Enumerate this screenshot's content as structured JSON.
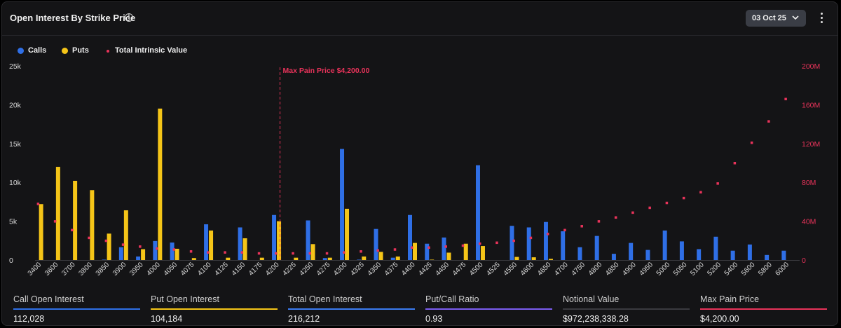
{
  "header": {
    "title": "Open Interest By Strike Price",
    "info_icon": "info-circle-icon",
    "date_selector": "03 Oct 25",
    "chevron_icon": "chevron-down-icon",
    "menu_icon": "more-vertical-icon"
  },
  "legend": [
    {
      "label": "Calls",
      "color": "#2f6fe6",
      "shape": "dot"
    },
    {
      "label": "Puts",
      "color": "#f5c518",
      "shape": "dot"
    },
    {
      "label": "Total Intrinsic Value",
      "color": "#e8335a",
      "shape": "small-dot"
    }
  ],
  "chart_data": {
    "type": "bar",
    "categories": [
      "3400",
      "3600",
      "3700",
      "3800",
      "3850",
      "3900",
      "3950",
      "4000",
      "4050",
      "4075",
      "4100",
      "4125",
      "4150",
      "4175",
      "4200",
      "4225",
      "4250",
      "4275",
      "4300",
      "4325",
      "4350",
      "4375",
      "4400",
      "4425",
      "4450",
      "4475",
      "4500",
      "4525",
      "4550",
      "4600",
      "4650",
      "4700",
      "4750",
      "4800",
      "4850",
      "4900",
      "4950",
      "5000",
      "5050",
      "5100",
      "5200",
      "5400",
      "5600",
      "5800",
      "6000"
    ],
    "series": [
      {
        "name": "Calls",
        "axis": "left",
        "values": [
          0,
          0,
          0,
          0,
          50,
          1650,
          450,
          2450,
          2250,
          0,
          4600,
          0,
          4200,
          0,
          5800,
          0,
          5100,
          250,
          14300,
          50,
          4000,
          300,
          5800,
          2100,
          2900,
          0,
          12200,
          0,
          4400,
          4200,
          4900,
          3700,
          1650,
          3100,
          800,
          2200,
          1300,
          3800,
          2400,
          1400,
          3000,
          1200,
          2000,
          650,
          1200
        ]
      },
      {
        "name": "Puts",
        "axis": "left",
        "values": [
          7200,
          12000,
          10200,
          9000,
          3400,
          6400,
          1400,
          19500,
          1450,
          250,
          3800,
          300,
          2800,
          300,
          5000,
          300,
          2050,
          300,
          6600,
          450,
          1050,
          450,
          2200,
          50,
          950,
          2100,
          1800,
          0,
          400,
          350,
          150,
          0,
          0,
          0,
          0,
          0,
          0,
          0,
          0,
          0,
          0,
          0,
          0,
          0,
          0
        ]
      },
      {
        "name": "Total Intrinsic Value",
        "axis": "right",
        "type": "scatter",
        "values": [
          58000000,
          40000000,
          31000000,
          23000000,
          20000000,
          16000000,
          14000000,
          12000000,
          11000000,
          9000000,
          8000000,
          8000000,
          8000000,
          7000000,
          7000000,
          7000000,
          7000000,
          7000000,
          8000000,
          9000000,
          10000000,
          11000000,
          13000000,
          13000000,
          14000000,
          15000000,
          17000000,
          18000000,
          20000000,
          23000000,
          27000000,
          31000000,
          35000000,
          40000000,
          44000000,
          49000000,
          54000000,
          59000000,
          64000000,
          70000000,
          79000000,
          100000000,
          121000000,
          143000000,
          166000000
        ]
      }
    ],
    "y_left": {
      "min": 0,
      "max": 25000,
      "ticks": [
        0,
        5000,
        10000,
        15000,
        20000,
        25000
      ],
      "tick_labels": [
        "0",
        "5k",
        "10k",
        "15k",
        "20k",
        "25k"
      ]
    },
    "y_right": {
      "min": 0,
      "max": 200000000,
      "ticks": [
        0,
        40000000,
        80000000,
        120000000,
        160000000,
        200000000
      ],
      "tick_labels": [
        "0",
        "40M",
        "80M",
        "120M",
        "160M",
        "200M"
      ]
    },
    "annotation": {
      "label": "Max Pain Price $4,200.00",
      "category": "4200",
      "color": "#e8335a"
    },
    "grid": false
  },
  "stats": [
    {
      "label": "Call Open Interest",
      "value": "112,028",
      "color": "#2f6fe6"
    },
    {
      "label": "Put Open Interest",
      "value": "104,184",
      "color": "#f5c518"
    },
    {
      "label": "Total Open Interest",
      "value": "216,212",
      "color": "#3b7bf0"
    },
    {
      "label": "Put/Call Ratio",
      "value": "0.93",
      "color": "#7b5cf0"
    },
    {
      "label": "Notional Value",
      "value": "$972,238,338.28",
      "color": "#3a3a3f"
    },
    {
      "label": "Max Pain Price",
      "value": "$4,200.00",
      "color": "#e8335a"
    }
  ]
}
